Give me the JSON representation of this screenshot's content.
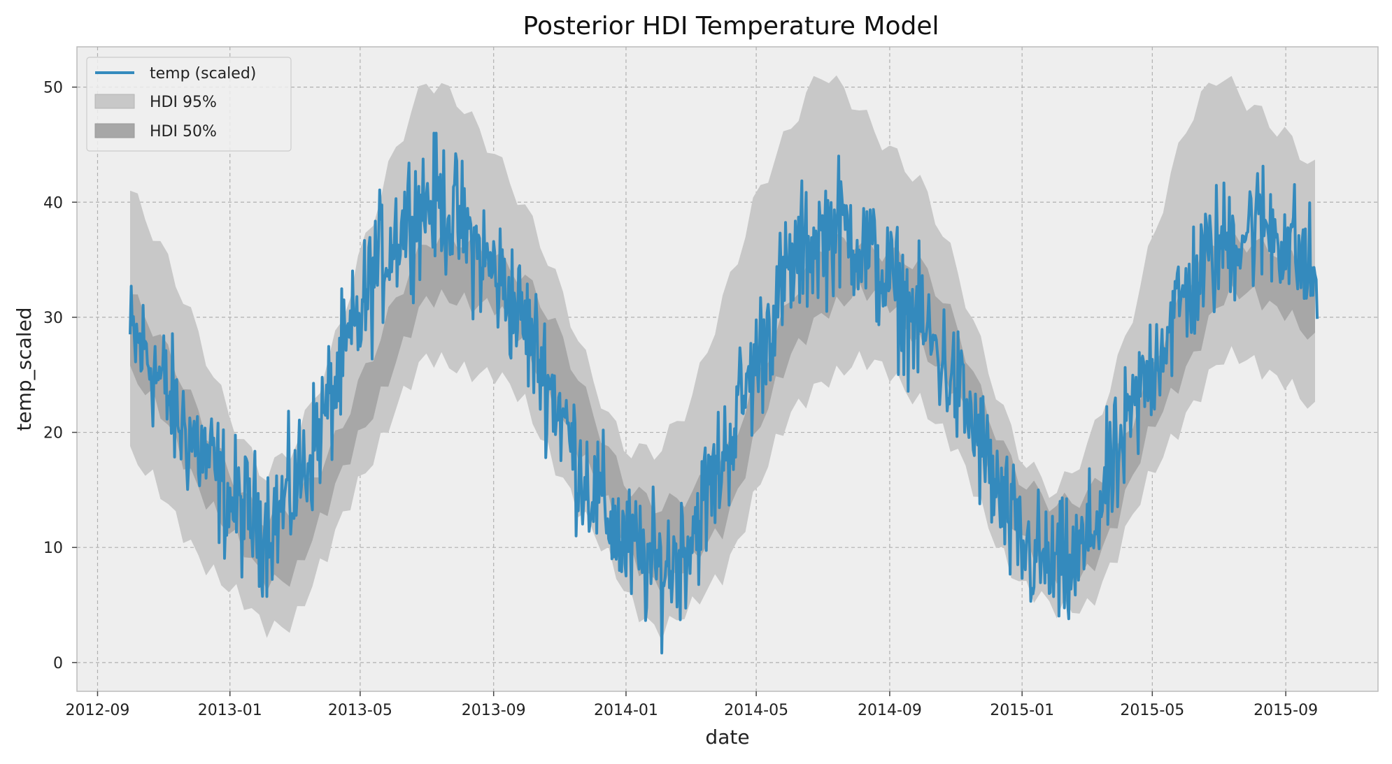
{
  "chart_data": {
    "type": "line",
    "title": "Posterior HDI Temperature Model",
    "xlabel": "date",
    "ylabel": "temp_scaled",
    "xlim": [
      "2012-08-13",
      "2015-11-25"
    ],
    "ylim": [
      -2.5,
      53.5
    ],
    "x_ticks": [
      "2012-09",
      "2013-01",
      "2013-05",
      "2013-09",
      "2014-01",
      "2014-05",
      "2014-09",
      "2015-01",
      "2015-05",
      "2015-09"
    ],
    "y_ticks": [
      0,
      10,
      20,
      30,
      40,
      50
    ],
    "grid": true,
    "legend": "top-left",
    "legend_entries": [
      "temp (scaled)",
      "HDI 95%",
      "HDI 50%"
    ],
    "colors": {
      "line": "#348abd",
      "hdi95": "#c8c8c8",
      "hdi50": "#a7a7a7",
      "plot_bg": "#eeeeee"
    },
    "series": [
      {
        "name": "temp (scaled)",
        "x": [
          "2012-10-01",
          "2012-10-15",
          "2012-11-01",
          "2012-11-15",
          "2012-12-01",
          "2012-12-15",
          "2013-01-01",
          "2013-01-15",
          "2013-02-01",
          "2013-02-15",
          "2013-03-01",
          "2013-03-15",
          "2013-04-01",
          "2013-04-15",
          "2013-05-01",
          "2013-05-15",
          "2013-06-01",
          "2013-06-15",
          "2013-07-01",
          "2013-07-15",
          "2013-08-01",
          "2013-08-15",
          "2013-09-01",
          "2013-09-15",
          "2013-10-01",
          "2013-10-15",
          "2013-11-01",
          "2013-11-15",
          "2013-12-01",
          "2013-12-15",
          "2014-01-01",
          "2014-01-15",
          "2014-02-01",
          "2014-02-15",
          "2014-03-01",
          "2014-03-15",
          "2014-04-01",
          "2014-04-15",
          "2014-05-01",
          "2014-05-15",
          "2014-06-01",
          "2014-06-15",
          "2014-07-01",
          "2014-07-15",
          "2014-08-01",
          "2014-08-15",
          "2014-09-01",
          "2014-09-15",
          "2014-10-01",
          "2014-10-15",
          "2014-11-01",
          "2014-11-15",
          "2014-12-01",
          "2014-12-15",
          "2015-01-01",
          "2015-01-15",
          "2015-02-01",
          "2015-02-15",
          "2015-03-01",
          "2015-03-15",
          "2015-04-01",
          "2015-04-15",
          "2015-05-01",
          "2015-05-15",
          "2015-06-01",
          "2015-06-15",
          "2015-07-01",
          "2015-07-15",
          "2015-08-01",
          "2015-08-15",
          "2015-09-01",
          "2015-09-15",
          "2015-09-30"
        ],
        "values": [
          28,
          27,
          24,
          21,
          19,
          17,
          14,
          13,
          12,
          13,
          15,
          18,
          22,
          26,
          30,
          34,
          37,
          39,
          40,
          40,
          38,
          36,
          34,
          32,
          29,
          26,
          22,
          18,
          15,
          13,
          10,
          9,
          8,
          9,
          11,
          14,
          18,
          22,
          26,
          30,
          34,
          36,
          37,
          38,
          37,
          35,
          33,
          31,
          29,
          27,
          24,
          21,
          17,
          13,
          10,
          9,
          8,
          8,
          10,
          14,
          18,
          22,
          26,
          29,
          32,
          34,
          36,
          37,
          38,
          38,
          37,
          35,
          33
        ],
        "noise": 4.5
      }
    ],
    "bands": [
      {
        "name": "HDI 95%",
        "x": [
          "2012-10-01",
          "2012-11-01",
          "2012-12-01",
          "2013-01-01",
          "2013-02-01",
          "2013-03-01",
          "2013-04-01",
          "2013-05-01",
          "2013-06-01",
          "2013-07-01",
          "2013-08-01",
          "2013-09-01",
          "2013-10-01",
          "2013-11-01",
          "2013-12-01",
          "2014-01-01",
          "2014-02-01",
          "2014-03-01",
          "2014-04-01",
          "2014-05-01",
          "2014-06-01",
          "2014-07-01",
          "2014-08-01",
          "2014-09-01",
          "2014-10-01",
          "2014-11-01",
          "2014-12-01",
          "2015-01-01",
          "2015-02-01",
          "2015-03-01",
          "2015-04-01",
          "2015-05-01",
          "2015-06-01",
          "2015-07-01",
          "2015-08-01",
          "2015-09-01",
          "2015-09-30"
        ],
        "lower": [
          18,
          14,
          10,
          6,
          3,
          4,
          9,
          16,
          22,
          26,
          26,
          25,
          22,
          17,
          11,
          6,
          3,
          4,
          8,
          15,
          21,
          25,
          26,
          25,
          23,
          18,
          12,
          7,
          4,
          5,
          10,
          16,
          22,
          26,
          26,
          25,
          21
        ],
        "upper": [
          41,
          35,
          29,
          22,
          16,
          18,
          26,
          36,
          44,
          50,
          49,
          45,
          39,
          32,
          25,
          19,
          18,
          22,
          32,
          41,
          46,
          51,
          49,
          45,
          41,
          34,
          26,
          18,
          14,
          18,
          27,
          37,
          46,
          51,
          49,
          46,
          42
        ]
      },
      {
        "name": "HDI 50%",
        "x": [
          "2012-10-01",
          "2012-11-01",
          "2012-12-01",
          "2013-01-01",
          "2013-02-01",
          "2013-03-01",
          "2013-04-01",
          "2013-05-01",
          "2013-06-01",
          "2013-07-01",
          "2013-08-01",
          "2013-09-01",
          "2013-10-01",
          "2013-11-01",
          "2013-12-01",
          "2014-01-01",
          "2014-02-01",
          "2014-03-01",
          "2014-04-01",
          "2014-05-01",
          "2014-06-01",
          "2014-07-01",
          "2014-08-01",
          "2014-09-01",
          "2014-10-01",
          "2014-11-01",
          "2014-12-01",
          "2015-01-01",
          "2015-02-01",
          "2015-03-01",
          "2015-04-01",
          "2015-05-01",
          "2015-06-01",
          "2015-07-01",
          "2015-08-01",
          "2015-09-01",
          "2015-09-30"
        ],
        "lower": [
          25,
          21,
          16,
          11,
          7,
          8,
          13,
          20,
          26,
          31,
          32,
          31,
          27,
          22,
          16,
          10,
          7,
          8,
          12,
          20,
          26,
          31,
          32,
          31,
          28,
          23,
          17,
          11,
          7,
          8,
          13,
          20,
          26,
          31,
          32,
          31,
          27
        ],
        "upper": [
          32,
          27,
          22,
          17,
          12,
          13,
          18,
          25,
          31,
          36,
          37,
          36,
          33,
          28,
          22,
          16,
          13,
          14,
          18,
          25,
          31,
          36,
          37,
          36,
          34,
          29,
          22,
          16,
          13,
          14,
          19,
          26,
          32,
          37,
          37,
          36,
          32
        ]
      }
    ]
  }
}
